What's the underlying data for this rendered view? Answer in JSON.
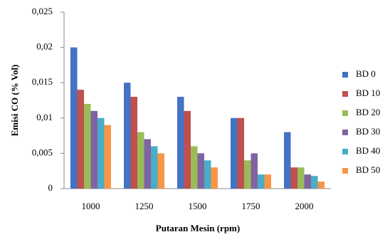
{
  "chart_data": {
    "type": "bar",
    "x_label": "Putaran Mesin (rpm)",
    "y_label": "Emisi CO (% Vol)",
    "categories": [
      "1000",
      "1250",
      "1500",
      "1750",
      "2000"
    ],
    "series": [
      {
        "name": "BD 0",
        "color": "#4472c4",
        "values": [
          0.02,
          0.015,
          0.013,
          0.01,
          0.008
        ]
      },
      {
        "name": "BD 10",
        "color": "#c0504d",
        "values": [
          0.014,
          0.013,
          0.011,
          0.01,
          0.003
        ]
      },
      {
        "name": "BD 20",
        "color": "#9bbb59",
        "values": [
          0.012,
          0.008,
          0.006,
          0.004,
          0.003
        ]
      },
      {
        "name": "BD 30",
        "color": "#8064a2",
        "values": [
          0.011,
          0.007,
          0.005,
          0.005,
          0.002
        ]
      },
      {
        "name": "BD 40",
        "color": "#4bacc6",
        "values": [
          0.01,
          0.006,
          0.004,
          0.002,
          0.0018
        ]
      },
      {
        "name": "BD 50",
        "color": "#f79646",
        "values": [
          0.009,
          0.005,
          0.003,
          0.002,
          0.001
        ]
      }
    ],
    "ylim": [
      0,
      0.025
    ],
    "yticks": [
      0,
      {
        "value": 0.005,
        "label": "0,005"
      },
      {
        "value": 0.01,
        "label": "0,01"
      },
      {
        "value": 0.015,
        "label": "0,015"
      },
      {
        "value": 0.02,
        "label": "0,02"
      },
      {
        "value": 0.025,
        "label": "0,025"
      }
    ],
    "grid": false,
    "legend": "right"
  }
}
